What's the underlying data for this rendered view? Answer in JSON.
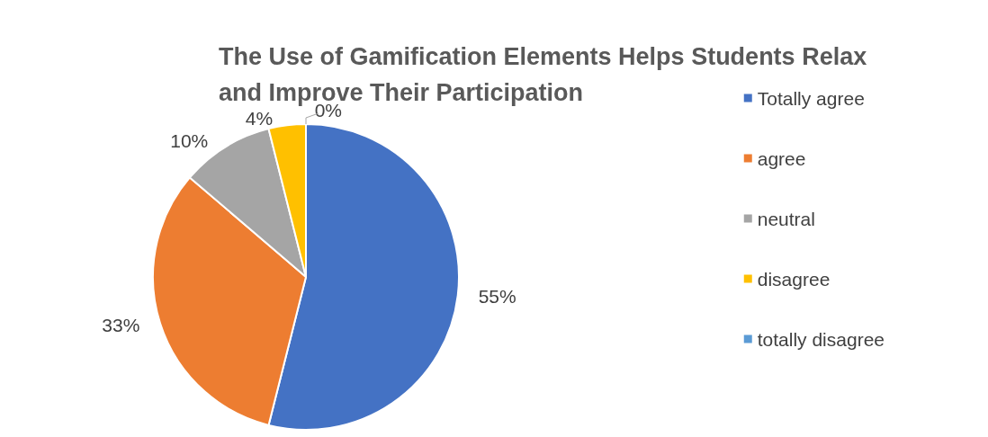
{
  "chart_data": {
    "type": "pie",
    "title": "The Use of Gamification Elements Helps Students Relax and Improve Their Participation",
    "categories": [
      "Totally agree",
      "agree",
      "neutral",
      "disagree",
      "totally disagree"
    ],
    "values": [
      55,
      33,
      10,
      4,
      0
    ],
    "value_labels": [
      "55%",
      "33%",
      "10%",
      "4%",
      "0%"
    ],
    "colors": [
      "#4472c4",
      "#ed7d31",
      "#a5a5a5",
      "#ffc000",
      "#5b9bd5"
    ],
    "legend": "right"
  }
}
